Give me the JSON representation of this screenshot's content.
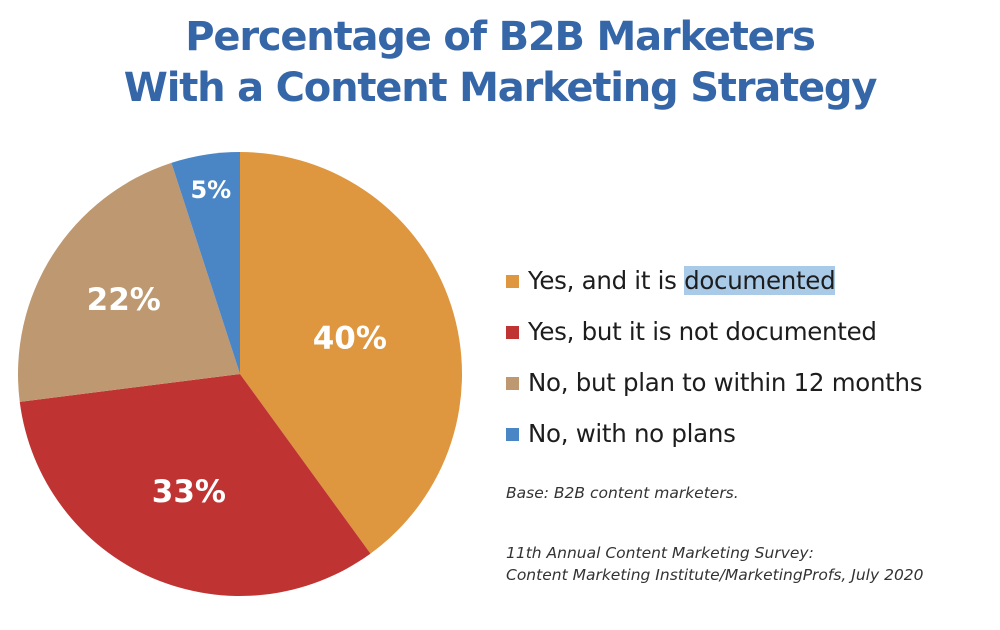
{
  "chart_data": {
    "type": "pie",
    "title": "Percentage of B2B Marketers With a Content Marketing Strategy",
    "title_lines": [
      "Percentage of B2B Marketers",
      "With a Content Marketing Strategy"
    ],
    "categories": [
      "Yes, and it is documented",
      "Yes, but it is not documented",
      "No, but plan to within 12 months",
      "No, with no plans"
    ],
    "values": [
      40,
      33,
      22,
      5
    ],
    "value_labels": [
      "40%",
      "33%",
      "22%",
      "5%"
    ],
    "colors": [
      "#de963f",
      "#bf3432",
      "#be9870",
      "#4a86c6"
    ],
    "legend_position": "right",
    "start_angle_deg": 0,
    "direction": "clockwise",
    "notes": [
      "Base: B2B content marketers.",
      "11th Annual Content Marketing Survey: Content Marketing Institute/MarketingProfs, July 2020"
    ]
  },
  "title": {
    "line1": "Percentage of B2B Marketers",
    "line2": "With a Content Marketing Strategy"
  },
  "legend": {
    "items": [
      {
        "label_prefix": "Yes, and it is ",
        "label_highlight": "documented",
        "color": "#de963f"
      },
      {
        "label": "Yes, but it is not documented",
        "color": "#bf3432"
      },
      {
        "label": "No, but plan to within 12 months",
        "color": "#be9870"
      },
      {
        "label": "No, with no plans",
        "color": "#4a86c6"
      }
    ]
  },
  "notes": {
    "base": "Base: B2B content marketers.",
    "source_line1": "11th Annual Content Marketing Survey:",
    "source_line2": "Content Marketing Institute/MarketingProfs, July 2020"
  },
  "highlight_color": "#aacbe8"
}
